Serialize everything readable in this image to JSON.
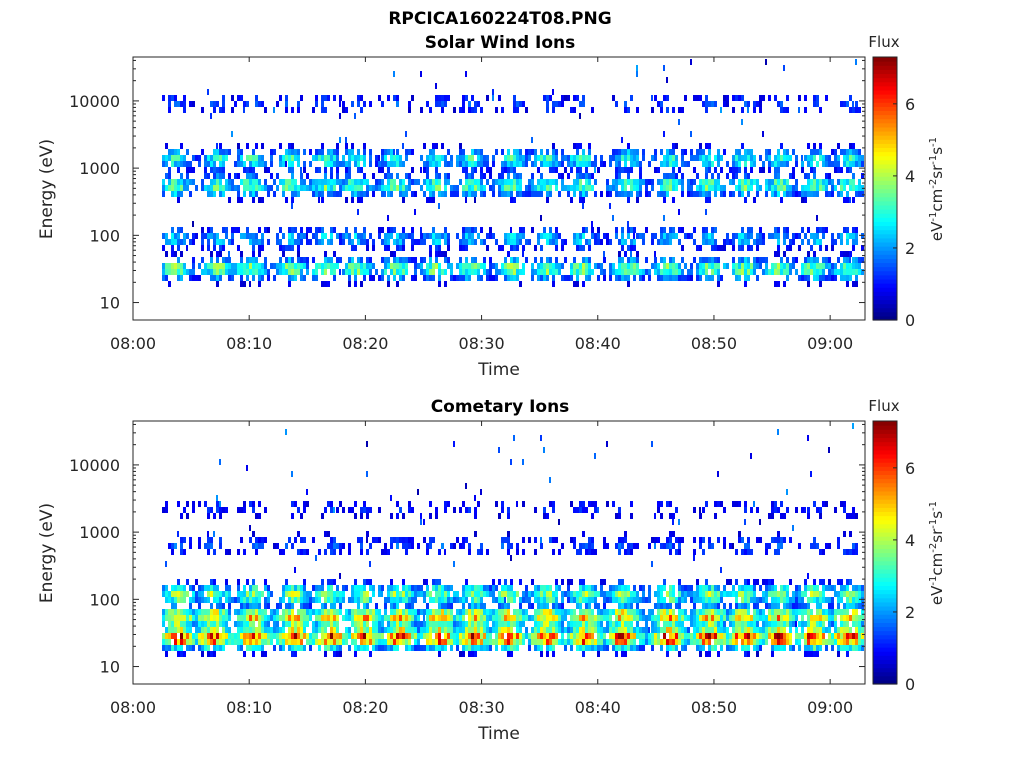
{
  "figure": {
    "title": "RPCICA160224T08.PNG"
  },
  "colorbar": {
    "label": "Flux",
    "unit_base": "eV",
    "unit_e1": "-1",
    "unit_cm": "cm",
    "unit_e2": "-2",
    "unit_sr": "sr",
    "unit_e3": "-1",
    "unit_s": "s",
    "unit_e4": "-1",
    "ticks": [
      "0",
      "2",
      "4",
      "6"
    ],
    "range": [
      0,
      7.3
    ],
    "colormap": "jet"
  },
  "chart_data": [
    {
      "type": "heatmap",
      "title": "Solar Wind Ions",
      "xlabel": "Time",
      "ylabel": "Energy (eV)",
      "x_ticks": [
        "08:00",
        "08:10",
        "08:20",
        "08:30",
        "08:40",
        "08:50",
        "09:00"
      ],
      "y_ticks": [
        "10",
        "100",
        "1000",
        "10000"
      ],
      "y_scale": "log",
      "ylim": [
        5.5,
        45000
      ],
      "xlim_minutes": [
        0,
        63
      ],
      "data_start_minute": 2.5,
      "bursts_minute": [
        3.5,
        7.2,
        10.0,
        13.5,
        16.5,
        19.0,
        22.5,
        26.0,
        29.0,
        32.5,
        35.5,
        38.5,
        42.5,
        46.0,
        49.5,
        52.5,
        55.5,
        58.5,
        61.5
      ],
      "bands": [
        {
          "energy_eV": 35,
          "peak_flux": 3.6
        },
        {
          "energy_eV": 100,
          "peak_flux": 2.4
        },
        {
          "energy_eV": 600,
          "peak_flux": 3.4
        },
        {
          "energy_eV": 1500,
          "peak_flux": 3.0
        },
        {
          "energy_eV": 10000,
          "peak_flux": 1.5
        }
      ]
    },
    {
      "type": "heatmap",
      "title": "Cometary Ions",
      "xlabel": "Time",
      "ylabel": "Energy (eV)",
      "x_ticks": [
        "08:00",
        "08:10",
        "08:20",
        "08:30",
        "08:40",
        "08:50",
        "09:00"
      ],
      "y_ticks": [
        "10",
        "100",
        "1000",
        "10000"
      ],
      "y_scale": "log",
      "ylim": [
        5.5,
        45000
      ],
      "xlim_minutes": [
        0,
        63
      ],
      "data_start_minute": 2.5,
      "bursts_minute": [
        3.8,
        6.8,
        10.2,
        13.8,
        16.8,
        19.8,
        22.8,
        26.2,
        29.2,
        32.2,
        35.5,
        38.8,
        42.0,
        46.0,
        49.5,
        52.5,
        55.5,
        58.5,
        61.5
      ],
      "bands": [
        {
          "energy_eV": 30,
          "peak_flux": 6.2
        },
        {
          "energy_eV": 60,
          "peak_flux": 5.0
        },
        {
          "energy_eV": 130,
          "peak_flux": 3.8
        },
        {
          "energy_eV": 700,
          "peak_flux": 1.6
        },
        {
          "energy_eV": 2500,
          "peak_flux": 1.2
        }
      ]
    }
  ]
}
